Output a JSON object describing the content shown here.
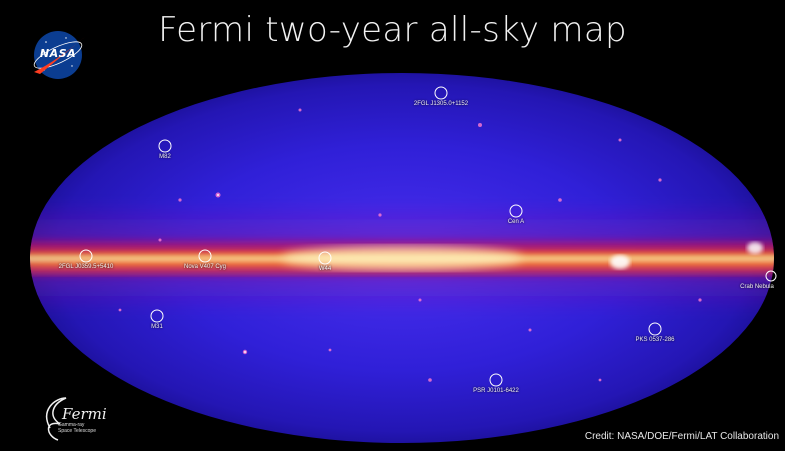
{
  "title": "Fermi two-year all-sky map",
  "credit": "Credit: NASA/DOE/Fermi/LAT Collaboration",
  "logos": {
    "nasa": "NASA",
    "fermi": "Fermi",
    "fermi_subtitle": "Gamma-ray Space Telescope"
  },
  "sources": [
    {
      "id": "j1305",
      "label": "2FGL J1305.0+1152"
    },
    {
      "id": "m82",
      "label": "M82"
    },
    {
      "id": "cena",
      "label": "Cen A"
    },
    {
      "id": "j0359",
      "label": "2FGL J0359.5+5410"
    },
    {
      "id": "nova",
      "label": "Nova V407 Cyg"
    },
    {
      "id": "w44",
      "label": "W44"
    },
    {
      "id": "crab",
      "label": "Crab Nebula"
    },
    {
      "id": "m31",
      "label": "M31"
    },
    {
      "id": "pks",
      "label": "PKS 0537-286"
    },
    {
      "id": "psr",
      "label": "PSR J0101-6422"
    }
  ],
  "colors": {
    "sky_deep": "#1a0f9e",
    "sky_mid": "#3322e0",
    "plane_core": "#fff3b0",
    "plane_orange": "#ff8a1a",
    "plane_red": "#e0203a",
    "nasa_blue": "#0b3d91",
    "nasa_red": "#fc3d21"
  }
}
